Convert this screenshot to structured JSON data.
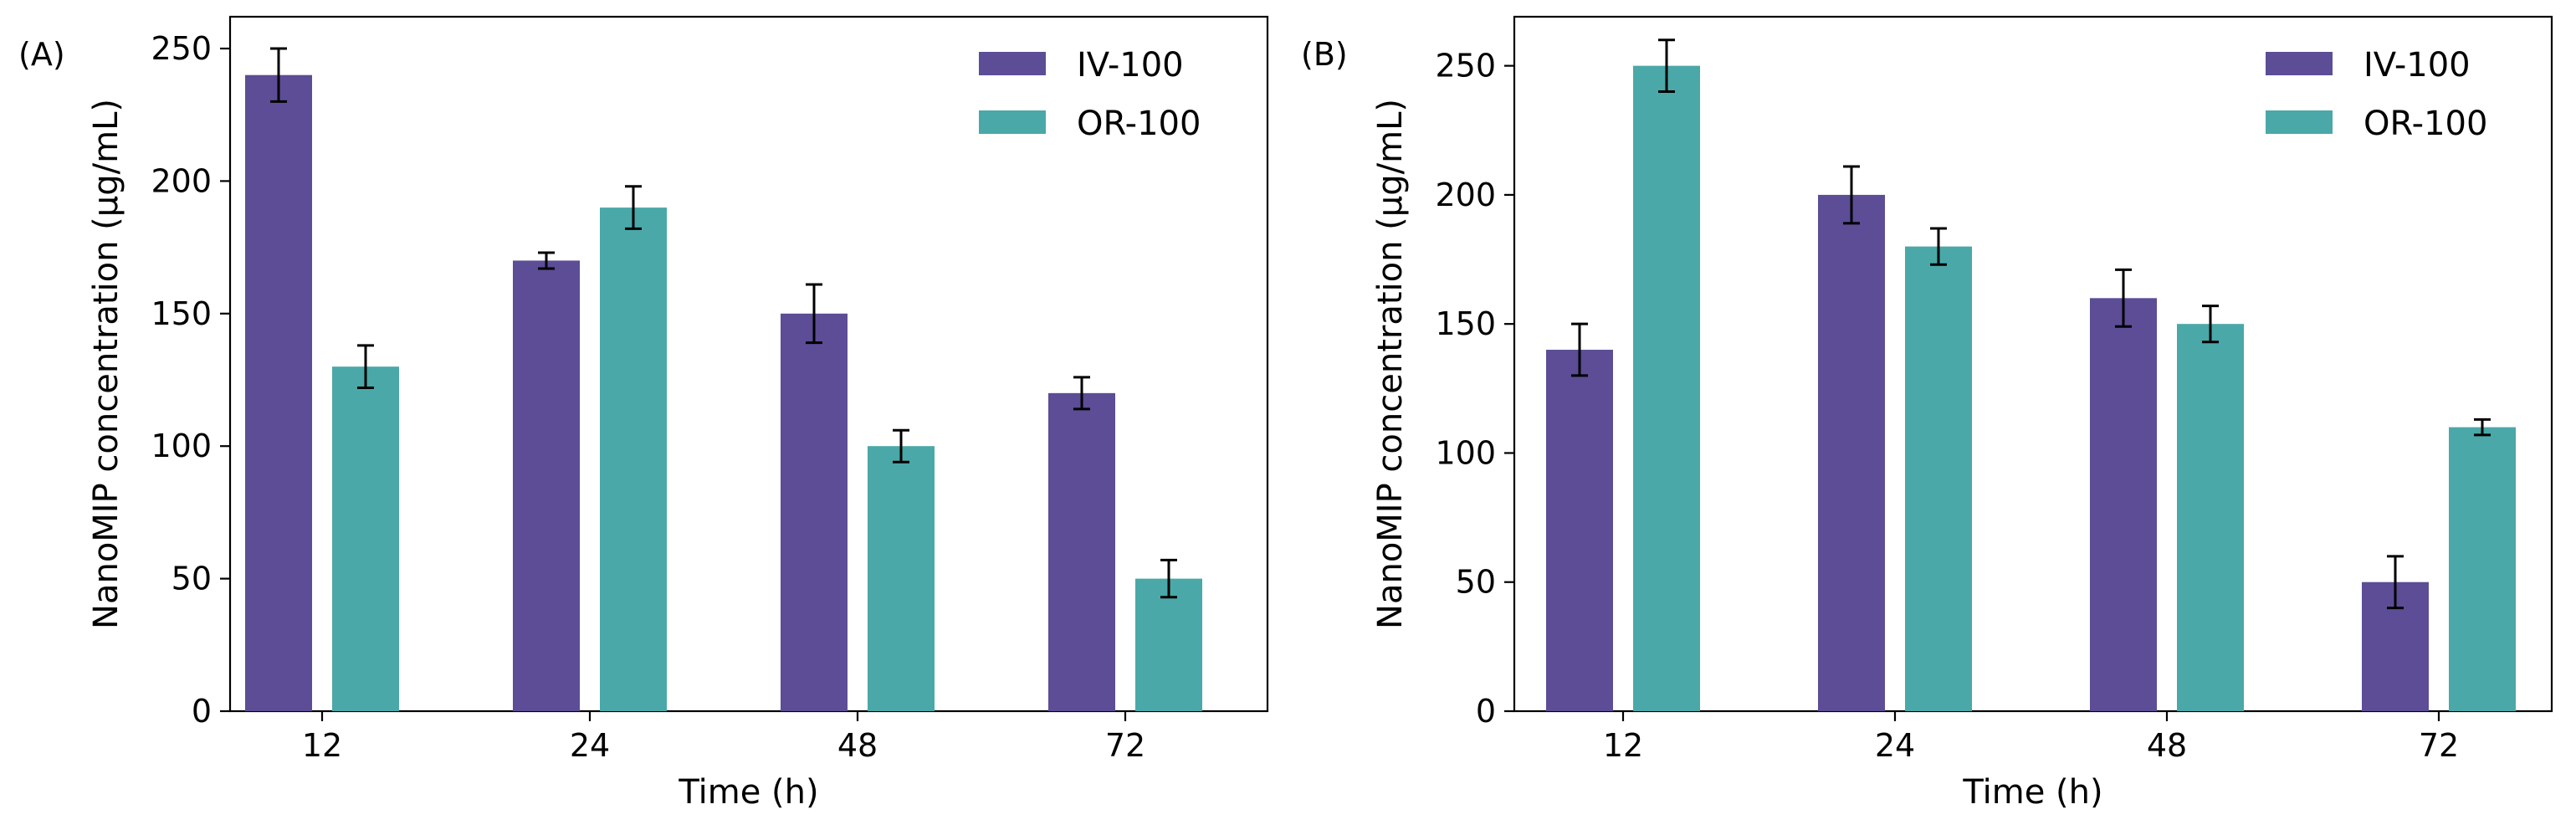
{
  "colors": {
    "series_1": "#5c4d96",
    "series_2": "#4aa8a8"
  },
  "chart_data": [
    {
      "panel_label": "(A)",
      "type": "bar",
      "categories": [
        "12",
        "24",
        "48",
        "72"
      ],
      "xlabel": "Time (h)",
      "ylabel": "NanoMIP concentration (µg/mL)",
      "ylim": [
        0,
        262
      ],
      "yticks": [
        "0",
        "50",
        "100",
        "150",
        "200",
        "250"
      ],
      "legend_position": "top-right",
      "series": [
        {
          "name": "IV-100",
          "values": [
            240,
            170,
            150,
            120
          ],
          "errors": [
            10,
            3,
            11,
            6
          ]
        },
        {
          "name": "OR-100",
          "values": [
            130,
            190,
            100,
            50
          ],
          "errors": [
            8,
            8,
            6,
            7
          ]
        }
      ]
    },
    {
      "panel_label": "(B)",
      "type": "bar",
      "categories": [
        "12",
        "24",
        "48",
        "72"
      ],
      "xlabel": "Time (h)",
      "ylabel": "NanoMIP concentration (µg/mL)",
      "ylim": [
        0,
        269
      ],
      "yticks": [
        "0",
        "50",
        "100",
        "150",
        "200",
        "250"
      ],
      "legend_position": "top-right",
      "series": [
        {
          "name": "IV-100",
          "values": [
            140,
            200,
            160,
            50
          ],
          "errors": [
            10,
            11,
            11,
            10
          ]
        },
        {
          "name": "OR-100",
          "values": [
            250,
            180,
            150,
            110
          ],
          "errors": [
            10,
            7,
            7,
            3
          ]
        }
      ]
    }
  ]
}
